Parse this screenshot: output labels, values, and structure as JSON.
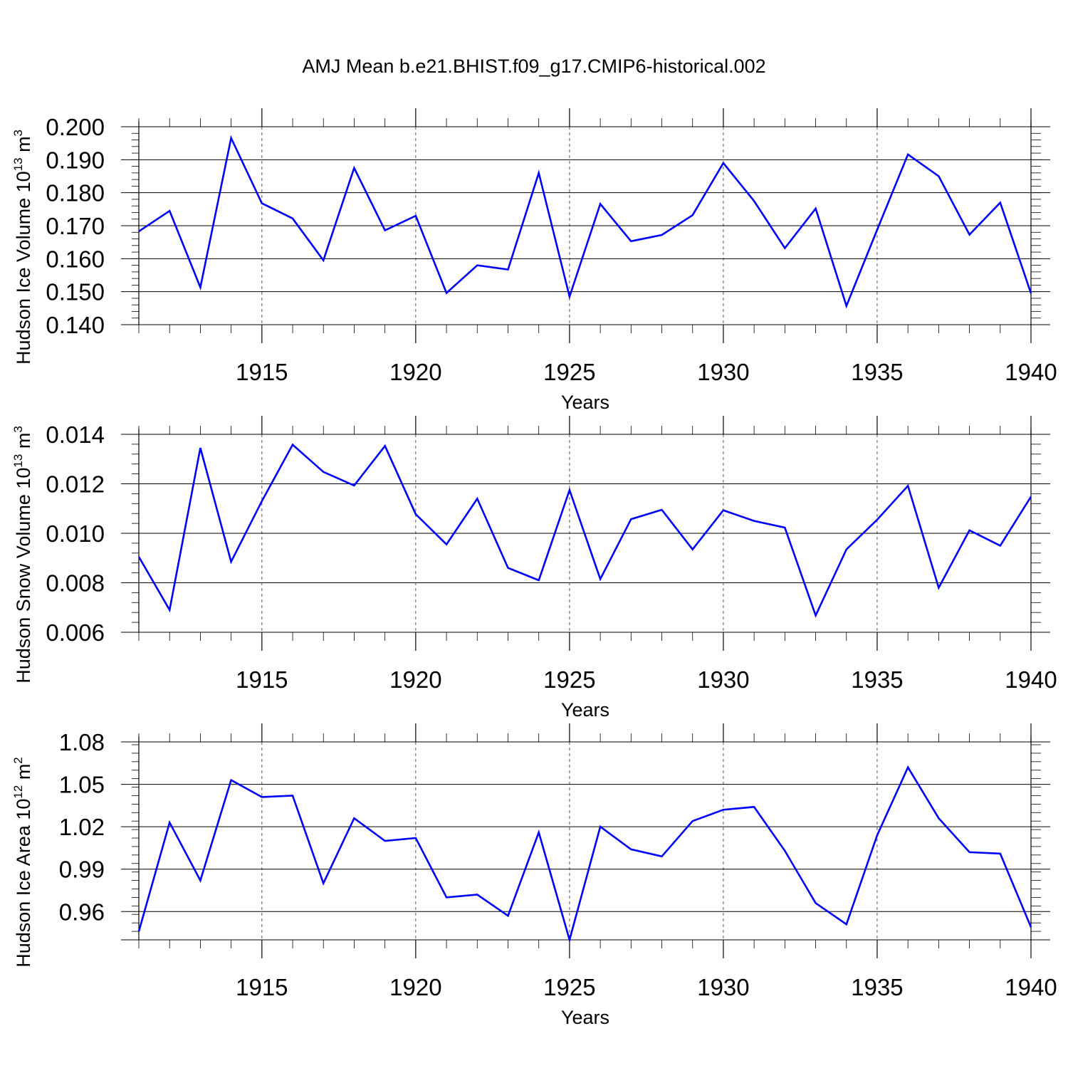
{
  "title": "AMJ Mean b.e21.BHIST.f09_g17.CMIP6-historical.002",
  "line_color": "#0000ff",
  "chart_data": [
    {
      "type": "line",
      "title": "AMJ Mean b.e21.BHIST.f09_g17.CMIP6-historical.002",
      "xlabel": "Years",
      "ylabel": {
        "main": "Hudson Ice Volume 10",
        "exp": "13",
        "unit": " m",
        "unit_exp": "3"
      },
      "xlim": [
        1911,
        1940
      ],
      "ylim": [
        0.14,
        0.2
      ],
      "xticks": [
        1915,
        1920,
        1925,
        1930,
        1935,
        1940
      ],
      "yticks": [
        0.14,
        0.15,
        0.16,
        0.17,
        0.18,
        0.19,
        0.2
      ],
      "ytick_labels": [
        "0.140",
        "0.150",
        "0.160",
        "0.170",
        "0.180",
        "0.190",
        "0.200"
      ],
      "yminor_step": 0.002,
      "grid": "dashed vertical at major x ticks",
      "x": [
        1911,
        1912,
        1913,
        1914,
        1915,
        1916,
        1917,
        1918,
        1919,
        1920,
        1921,
        1922,
        1923,
        1924,
        1925,
        1926,
        1927,
        1928,
        1929,
        1930,
        1931,
        1932,
        1933,
        1934,
        1935,
        1936,
        1937,
        1938,
        1939,
        1940
      ],
      "series": [
        {
          "values": [
            0.1683,
            0.1745,
            0.1513,
            0.1966,
            0.1768,
            0.1722,
            0.1595,
            0.1875,
            0.1686,
            0.173,
            0.1496,
            0.158,
            0.1567,
            0.186,
            0.1485,
            0.1766,
            0.1653,
            0.1672,
            0.1732,
            0.189,
            0.1775,
            0.1632,
            0.1752,
            0.1457,
            0.1688,
            0.1916,
            0.185,
            0.1673,
            0.177,
            0.1495
          ]
        }
      ]
    },
    {
      "type": "line",
      "xlabel": "Years",
      "ylabel": {
        "main": "Hudson Snow Volume 10",
        "exp": "13",
        "unit": " m",
        "unit_exp": "3"
      },
      "xlim": [
        1911,
        1940
      ],
      "ylim": [
        0.006,
        0.014
      ],
      "xticks": [
        1915,
        1920,
        1925,
        1930,
        1935,
        1940
      ],
      "yticks": [
        0.006,
        0.008,
        0.01,
        0.012,
        0.014
      ],
      "ytick_labels": [
        "0.006",
        "0.008",
        "0.010",
        "0.012",
        "0.014"
      ],
      "yminor_step": 0.0004,
      "grid": "dashed vertical at major x ticks",
      "x": [
        1911,
        1912,
        1913,
        1914,
        1915,
        1916,
        1917,
        1918,
        1919,
        1920,
        1921,
        1922,
        1923,
        1924,
        1925,
        1926,
        1927,
        1928,
        1929,
        1930,
        1931,
        1932,
        1933,
        1934,
        1935,
        1936,
        1937,
        1938,
        1939,
        1940
      ],
      "series": [
        {
          "values": [
            0.00905,
            0.0069,
            0.01345,
            0.00885,
            0.0113,
            0.01358,
            0.01248,
            0.01193,
            0.01353,
            0.01077,
            0.00955,
            0.0114,
            0.0086,
            0.0081,
            0.01175,
            0.00815,
            0.01057,
            0.01095,
            0.00935,
            0.01093,
            0.0105,
            0.01023,
            0.00668,
            0.00935,
            0.01055,
            0.01192,
            0.0078,
            0.01012,
            0.0095,
            0.01148
          ]
        }
      ]
    },
    {
      "type": "line",
      "xlabel": "Years",
      "ylabel": {
        "main": "Hudson Ice Area 10",
        "exp": "12",
        "unit": " m",
        "unit_exp": "2"
      },
      "xlim": [
        1911,
        1940
      ],
      "ylim": [
        0.94,
        1.08
      ],
      "xticks": [
        1915,
        1920,
        1925,
        1930,
        1935,
        1940
      ],
      "yticks": [
        0.96,
        0.99,
        1.02,
        1.05,
        1.08
      ],
      "ytick_labels": [
        "0.96",
        "0.99",
        "1.02",
        "1.05",
        "1.08"
      ],
      "yminor_step": 0.006,
      "grid": "dashed vertical at major x ticks",
      "x": [
        1911,
        1912,
        1913,
        1914,
        1915,
        1916,
        1917,
        1918,
        1919,
        1920,
        1921,
        1922,
        1923,
        1924,
        1925,
        1926,
        1927,
        1928,
        1929,
        1930,
        1931,
        1932,
        1933,
        1934,
        1935,
        1936,
        1937,
        1938,
        1939,
        1940
      ],
      "series": [
        {
          "values": [
            0.946,
            1.023,
            0.982,
            1.053,
            1.041,
            1.042,
            0.98,
            1.026,
            1.01,
            1.012,
            0.97,
            0.972,
            0.957,
            1.016,
            0.94,
            1.02,
            1.004,
            0.999,
            1.024,
            1.032,
            1.034,
            1.003,
            0.966,
            0.951,
            1.014,
            1.062,
            1.026,
            1.002,
            1.001,
            0.949
          ]
        }
      ]
    }
  ]
}
